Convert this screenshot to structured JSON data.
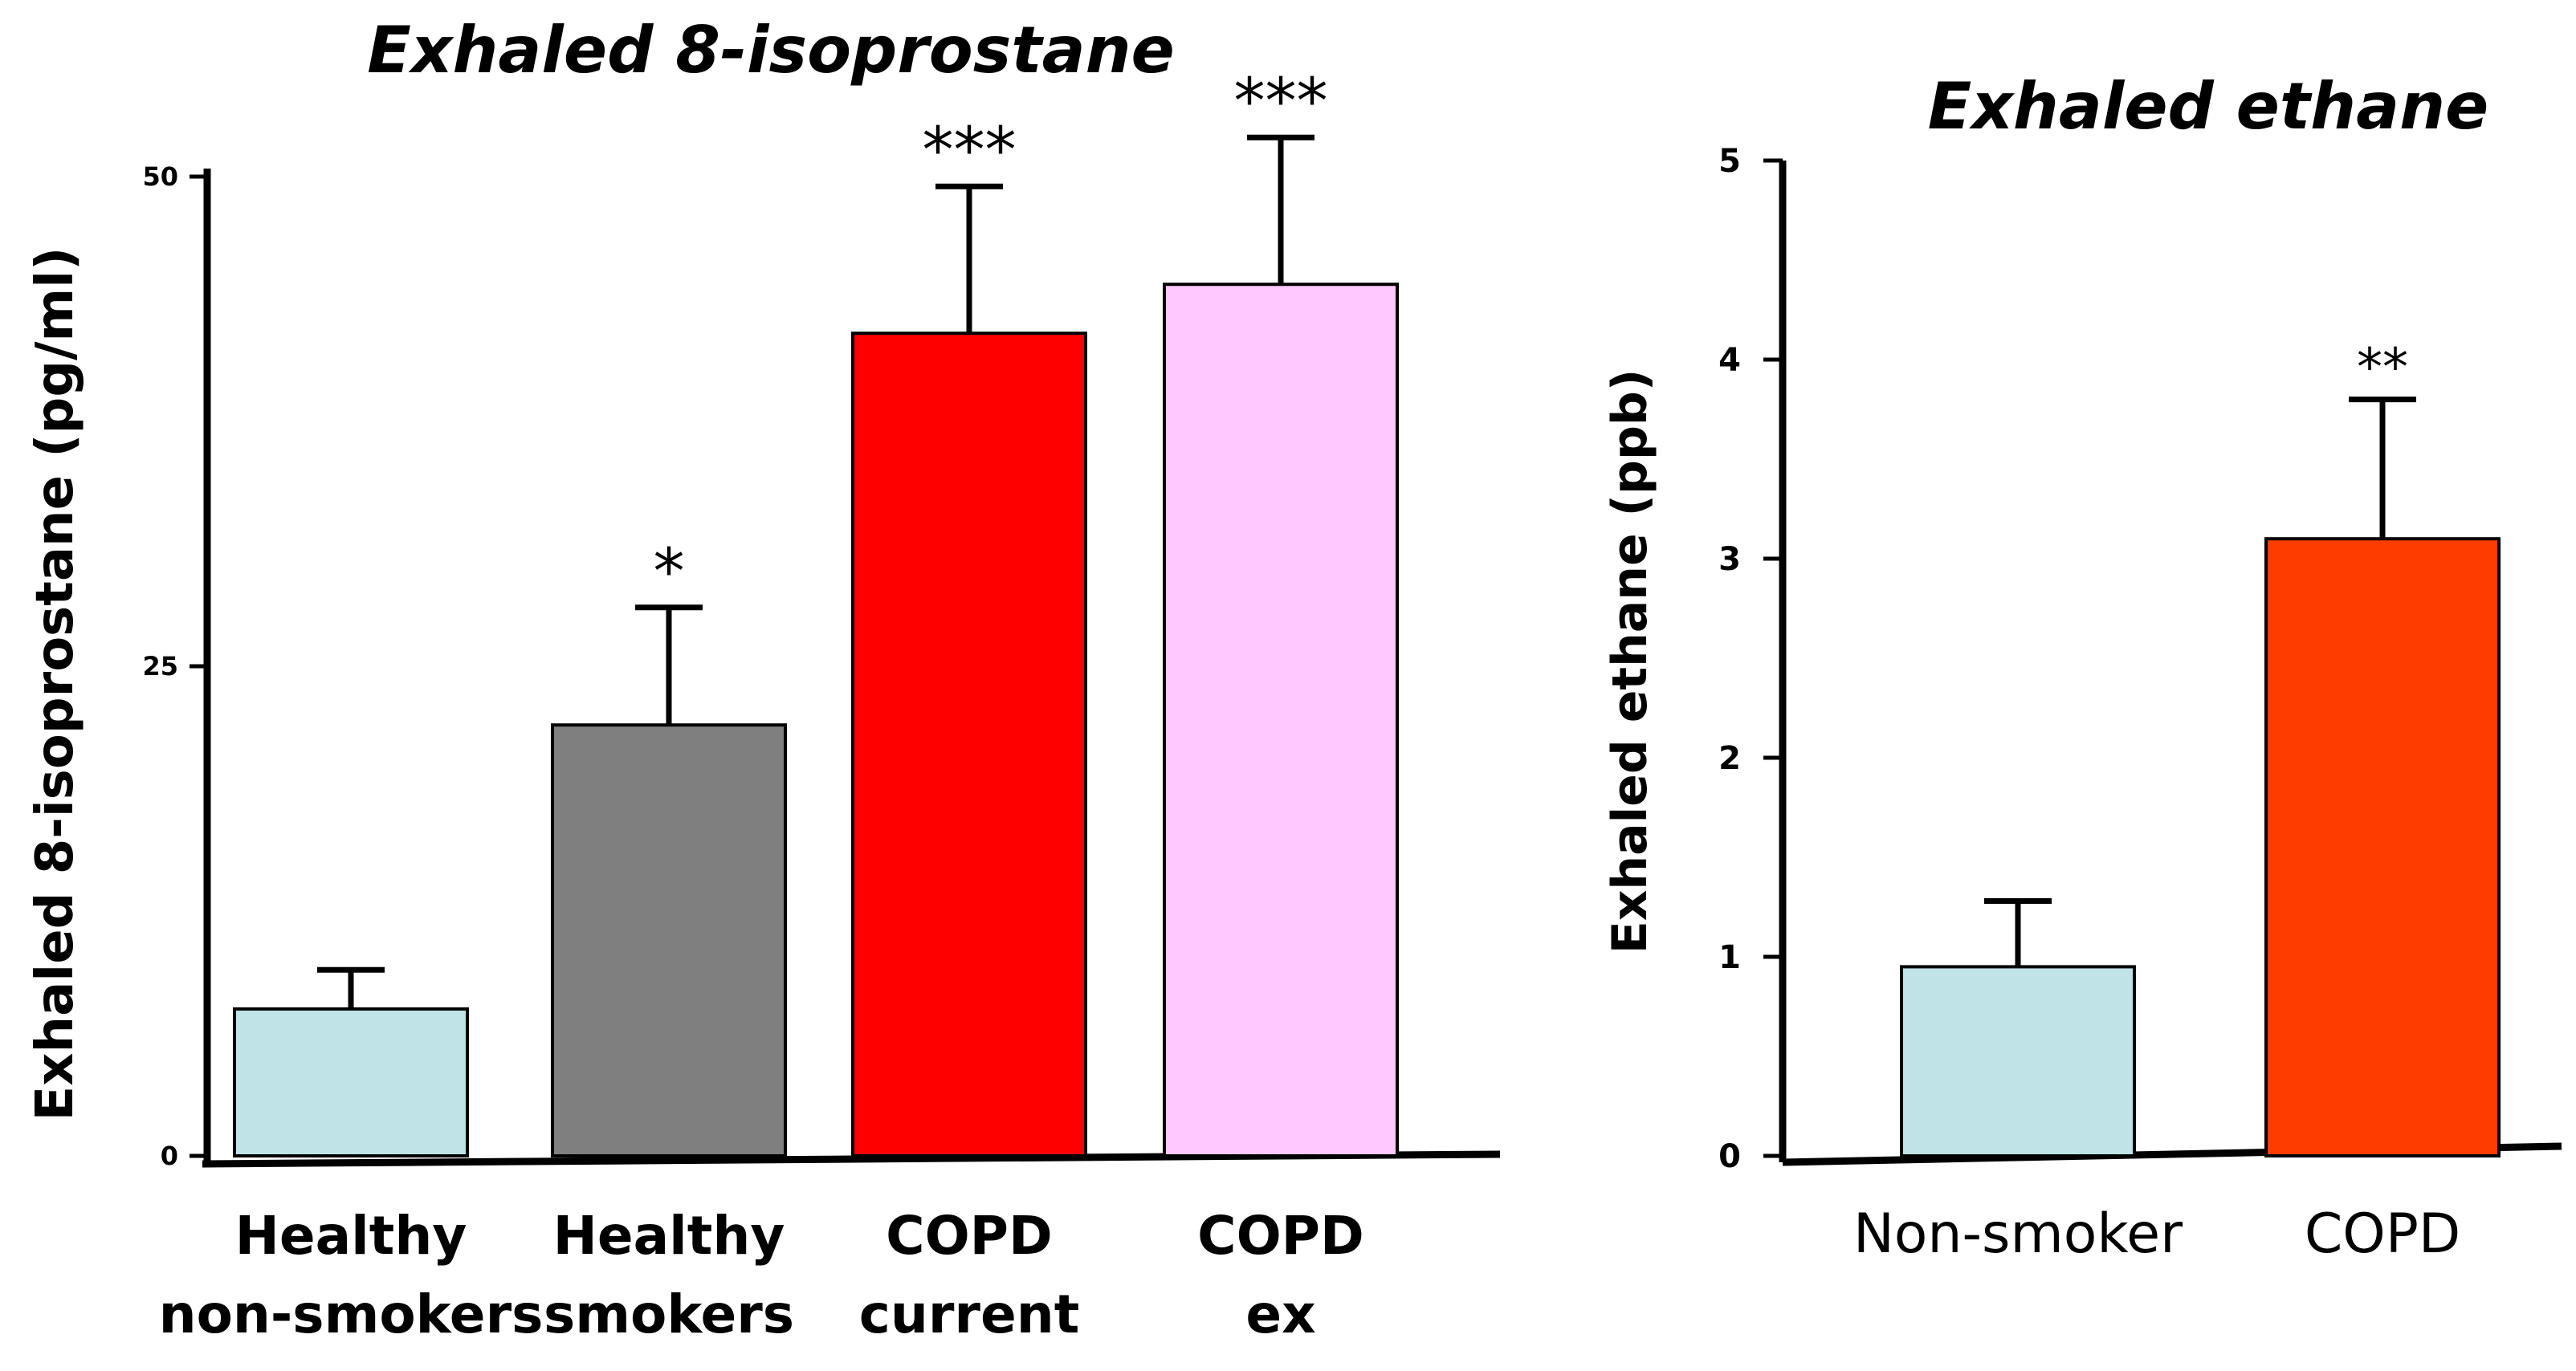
{
  "chart_data": [
    {
      "type": "bar",
      "title": "Exhaled 8-isoprostane",
      "ylabel": "Exhaled 8-isoprostane (pg/ml)",
      "xlabel": "",
      "ylim": [
        0,
        50
      ],
      "yticks": [
        0,
        25,
        50
      ],
      "grid": false,
      "categories": [
        [
          "Healthy",
          "non-smokers"
        ],
        [
          "Healthy",
          "smokers"
        ],
        [
          "COPD",
          "current"
        ],
        [
          "COPD",
          "ex"
        ]
      ],
      "values": [
        7.5,
        22,
        42,
        44.5
      ],
      "errors": [
        2,
        6,
        7.5,
        7.5
      ],
      "annotations": [
        "",
        "*",
        "***",
        "***"
      ],
      "colors": [
        "#bfe3e6",
        "#7f7f7f",
        "#ff0000",
        "#ffc8ff"
      ]
    },
    {
      "type": "bar",
      "title": "Exhaled ethane",
      "ylabel": "Exhaled ethane (ppb)",
      "xlabel": "",
      "ylim": [
        0,
        5
      ],
      "yticks": [
        0,
        1,
        2,
        3,
        4,
        5
      ],
      "grid": false,
      "categories": [
        [
          "Non-smoker"
        ],
        [
          "COPD"
        ]
      ],
      "values": [
        0.95,
        3.1
      ],
      "errors": [
        0.33,
        0.7
      ],
      "annotations": [
        "",
        "**"
      ],
      "colors": [
        "#bfe3e6",
        "#ff3c00"
      ]
    }
  ]
}
